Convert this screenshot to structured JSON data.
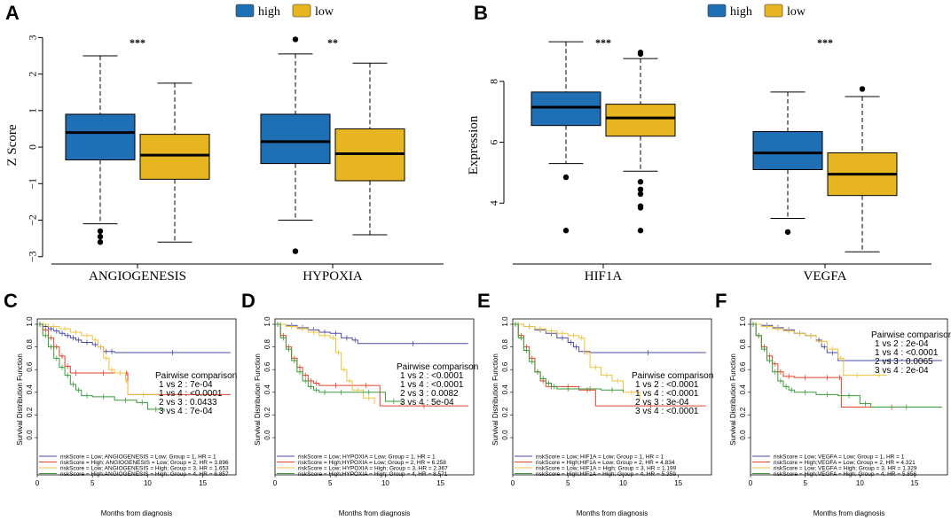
{
  "colors": {
    "high": "#1f6fb5",
    "low": "#e6b520",
    "km_group1": "#4a4aa8",
    "km_group2": "#e0422a",
    "km_group3": "#f0c23c",
    "km_group4": "#3a9a3a"
  },
  "chart_data": [
    {
      "panel": "A",
      "type": "box",
      "ylabel": "Z Score",
      "ylim": [
        -3.2,
        3.3
      ],
      "yticks": [
        -3,
        -2,
        -1,
        0,
        1,
        2,
        3
      ],
      "legend": [
        "high",
        "low"
      ],
      "groups": [
        {
          "category": "ANGIOGENESIS",
          "significance": "***",
          "boxes": [
            {
              "series": "high",
              "whisker_low": -2.1,
              "q1": -0.35,
              "median": 0.4,
              "q3": 0.9,
              "whisker_high": 2.5,
              "outliers": [
                -2.3,
                -2.45,
                -2.6
              ]
            },
            {
              "series": "low",
              "whisker_low": -2.6,
              "q1": -0.88,
              "median": -0.22,
              "q3": 0.35,
              "whisker_high": 1.75,
              "outliers": []
            }
          ]
        },
        {
          "category": "HYPOXIA",
          "significance": "**",
          "boxes": [
            {
              "series": "high",
              "whisker_low": -2.0,
              "q1": -0.45,
              "median": 0.15,
              "q3": 0.9,
              "whisker_high": 2.55,
              "outliers": [
                2.95,
                -2.85
              ]
            },
            {
              "series": "low",
              "whisker_low": -2.4,
              "q1": -0.92,
              "median": -0.18,
              "q3": 0.5,
              "whisker_high": 2.3,
              "outliers": []
            }
          ]
        }
      ]
    },
    {
      "panel": "B",
      "type": "box",
      "ylabel": "Expression",
      "ylim": [
        2.0,
        9.8
      ],
      "yticks": [
        4,
        6,
        8
      ],
      "legend": [
        "high",
        "low"
      ],
      "groups": [
        {
          "category": "HIF1A",
          "significance": "***",
          "boxes": [
            {
              "series": "high",
              "whisker_low": 5.3,
              "q1": 6.55,
              "median": 7.15,
              "q3": 7.65,
              "whisker_high": 9.3,
              "outliers": [
                4.85,
                3.1
              ]
            },
            {
              "series": "low",
              "whisker_low": 5.05,
              "q1": 6.2,
              "median": 6.8,
              "q3": 7.25,
              "whisker_high": 8.75,
              "outliers": [
                8.9,
                8.95,
                4.7,
                4.45,
                4.3,
                3.9,
                3.85,
                3.1
              ]
            }
          ]
        },
        {
          "category": "VEGFA",
          "significance": "***",
          "boxes": [
            {
              "series": "high",
              "whisker_low": 3.5,
              "q1": 5.1,
              "median": 5.65,
              "q3": 6.35,
              "whisker_high": 7.65,
              "outliers": [
                3.05
              ]
            },
            {
              "series": "low",
              "whisker_low": 2.4,
              "q1": 4.25,
              "median": 4.95,
              "q3": 5.65,
              "whisker_high": 7.5,
              "outliers": [
                7.75
              ]
            }
          ]
        }
      ]
    },
    {
      "panel": "C",
      "type": "line",
      "xlabel": "Months from diagnosis",
      "ylabel": "Survival Distribution Function",
      "xlim": [
        0,
        18
      ],
      "ylim": [
        0,
        1
      ],
      "xticks": [
        0,
        5,
        10,
        15
      ],
      "yticks": [
        0.0,
        0.2,
        0.4,
        0.6,
        0.8,
        1.0
      ],
      "pairwise_title": "Pairwise comparison",
      "pairwise": [
        "1 vs 2 : 7e-04",
        "1 vs 4 : <0.0001",
        "2 vs 3 : 0.0433",
        "3 vs 4 : 7e-04"
      ],
      "legend": [
        "riskScore = Low; ANGIOGENESIS = Low;  Group = 1, HR = 1",
        "riskScore = High; ANGIOGENESIS = Low;  Group = 2, HR = 3.896",
        "riskScore = Low; ANGIOGENESIS = High;  Group = 3, HR = 1.653",
        "riskScore = High;ANGIOGENESIS = High; Group = 4, HR = 6.857"
      ],
      "series": [
        {
          "name": "Group 1",
          "x": [
            0,
            0.5,
            1,
            1.5,
            2,
            2.5,
            3,
            3.5,
            4,
            5,
            5.5,
            6,
            6.5,
            7,
            17.5
          ],
          "y": [
            1,
            0.98,
            0.96,
            0.94,
            0.92,
            0.9,
            0.88,
            0.86,
            0.84,
            0.82,
            0.8,
            0.76,
            0.76,
            0.75,
            0.75
          ]
        },
        {
          "name": "Group 2",
          "x": [
            0,
            0.5,
            1,
            1.5,
            2,
            2.5,
            3,
            4,
            8,
            8.2,
            17.5
          ],
          "y": [
            1,
            0.95,
            0.88,
            0.8,
            0.72,
            0.63,
            0.57,
            0.57,
            0.57,
            0.38,
            0.38
          ]
        },
        {
          "name": "Group 3",
          "x": [
            0,
            1,
            2,
            3,
            4,
            5,
            5.5,
            6,
            6.5,
            7,
            8,
            8.2,
            11
          ],
          "y": [
            1,
            0.98,
            0.96,
            0.93,
            0.9,
            0.86,
            0.8,
            0.7,
            0.6,
            0.57,
            0.5,
            0.38,
            0.38
          ]
        },
        {
          "name": "Group 4",
          "x": [
            0,
            0.5,
            1,
            1.5,
            2,
            2.5,
            3,
            3.5,
            4,
            5,
            7,
            9,
            10,
            11.5
          ],
          "y": [
            1,
            0.9,
            0.8,
            0.7,
            0.62,
            0.55,
            0.47,
            0.42,
            0.37,
            0.36,
            0.33,
            0.31,
            0.25,
            0.23
          ]
        }
      ]
    },
    {
      "panel": "D",
      "type": "line",
      "xlabel": "Months from diagnosis",
      "ylabel": "Survival Distribution Function",
      "xlim": [
        0,
        18
      ],
      "ylim": [
        0,
        1
      ],
      "xticks": [
        0,
        5,
        10,
        15
      ],
      "yticks": [
        0.0,
        0.2,
        0.4,
        0.6,
        0.8,
        1.0
      ],
      "pairwise_title": "Pairwise comparison",
      "pairwise": [
        "1 vs 2 : <0.0001",
        "1 vs 4 : <0.0001",
        "2 vs 3 : 0.0082",
        "3 vs 4 : 5e-04"
      ],
      "legend": [
        "riskScore = Low; HYPOXIA = Low;  Group = 1, HR = 1",
        "riskScore = High;HYPOXIA = Low;  Group = 2, HR = 6.258",
        "riskScore = Low; HYPOXIA = High;  Group = 3, HR = 2.367",
        "riskScore = High;HYPOXIA = High; Group = 4, HR = 8.571"
      ],
      "series": [
        {
          "name": "Group 1",
          "x": [
            0,
            1,
            2,
            3,
            4,
            5,
            6,
            7,
            7.5,
            17.5
          ],
          "y": [
            1,
            0.99,
            0.97,
            0.95,
            0.93,
            0.92,
            0.88,
            0.86,
            0.83,
            0.83
          ]
        },
        {
          "name": "Group 2",
          "x": [
            0,
            0.5,
            1,
            1.5,
            2,
            2.5,
            3,
            3.5,
            4,
            7,
            9.5,
            17.5
          ],
          "y": [
            1,
            0.9,
            0.8,
            0.7,
            0.62,
            0.55,
            0.5,
            0.48,
            0.46,
            0.46,
            0.28,
            0.28
          ]
        },
        {
          "name": "Group 3",
          "x": [
            0,
            1,
            2,
            3,
            4,
            5,
            5.5,
            6,
            6.5,
            7,
            8,
            9
          ],
          "y": [
            1,
            0.98,
            0.96,
            0.93,
            0.9,
            0.88,
            0.75,
            0.6,
            0.5,
            0.42,
            0.35,
            0.3
          ]
        },
        {
          "name": "Group 4",
          "x": [
            0,
            0.5,
            1,
            1.5,
            2,
            2.5,
            3,
            3.5,
            4,
            5,
            7,
            10,
            11.5
          ],
          "y": [
            1,
            0.88,
            0.78,
            0.68,
            0.58,
            0.5,
            0.45,
            0.42,
            0.4,
            0.4,
            0.4,
            0.32,
            0.3
          ]
        }
      ]
    },
    {
      "panel": "E",
      "type": "line",
      "xlabel": "Months from diagnosis",
      "ylabel": "Survival Distribution Function",
      "xlim": [
        0,
        18
      ],
      "ylim": [
        0,
        1
      ],
      "xticks": [
        0,
        5,
        10,
        15
      ],
      "yticks": [
        0.0,
        0.2,
        0.4,
        0.6,
        0.8,
        1.0
      ],
      "pairwise_title": "Pairwise comparison",
      "pairwise": [
        "1 vs 2 : <0.0001",
        "1 vs 4 : <0.0001",
        "2 vs 3 : 3e-04",
        "3 vs 4 : <0.0001"
      ],
      "legend": [
        "riskScore = Low; HIF1A = Low;  Group = 1, HR = 1",
        "riskScore = High;HIF1A = Low;  Group = 2, HR = 4.834",
        "riskScore = Low; HIF1A = High;  Group = 3, HR = 1.199",
        "riskScore = High;HIF1A = High; Group = 4, HR = 5.359"
      ],
      "series": [
        {
          "name": "Group 1",
          "x": [
            0,
            1,
            2,
            3,
            4,
            5,
            5.5,
            6,
            7,
            17.5
          ],
          "y": [
            1,
            0.98,
            0.95,
            0.92,
            0.88,
            0.84,
            0.8,
            0.76,
            0.75,
            0.75
          ]
        },
        {
          "name": "Group 2",
          "x": [
            0,
            0.5,
            1,
            1.5,
            2,
            2.5,
            3,
            4,
            6,
            7.5,
            17.5
          ],
          "y": [
            1,
            0.9,
            0.8,
            0.7,
            0.58,
            0.5,
            0.45,
            0.45,
            0.42,
            0.28,
            0.28
          ]
        },
        {
          "name": "Group 3",
          "x": [
            0,
            1,
            2,
            3,
            4,
            5,
            6,
            6.5,
            7,
            8,
            9,
            10,
            11.5
          ],
          "y": [
            1,
            0.98,
            0.96,
            0.94,
            0.92,
            0.9,
            0.88,
            0.75,
            0.62,
            0.55,
            0.5,
            0.4,
            0.33
          ]
        },
        {
          "name": "Group 4",
          "x": [
            0,
            0.5,
            1,
            1.5,
            2,
            2.5,
            3,
            3.5,
            4,
            6,
            8,
            10
          ],
          "y": [
            1,
            0.88,
            0.77,
            0.67,
            0.58,
            0.52,
            0.48,
            0.45,
            0.43,
            0.43,
            0.42,
            0.4
          ]
        }
      ]
    },
    {
      "panel": "F",
      "type": "line",
      "xlabel": "Months from diagnosis",
      "ylabel": "Survival Distribution Function",
      "xlim": [
        0,
        18
      ],
      "ylim": [
        0,
        1
      ],
      "xticks": [
        0,
        5,
        10,
        15
      ],
      "yticks": [
        0.0,
        0.2,
        0.4,
        0.6,
        0.8,
        1.0
      ],
      "pairwise_title": "Pairwise comparison",
      "pairwise": [
        "1 vs 2 : 2e-04",
        "1 vs 4 : <0.0001",
        "2 vs 3 : 0.0065",
        "3 vs 4 : 2e-04"
      ],
      "legend": [
        "riskScore = Low; VEGFA = Low;  Group = 1, HR = 1",
        "riskScore = High;VEGFA = Low;  Group = 2, HR = 4.321",
        "riskScore = Low; VEGFA = High;  Group = 3, HR = 1.329",
        "riskScore = High;VEGFA = High; Group = 4, HR = 5.856"
      ],
      "series": [
        {
          "name": "Group 1",
          "x": [
            0,
            1,
            2,
            3,
            4,
            5,
            6,
            6.5,
            7,
            8,
            17.5
          ],
          "y": [
            1,
            0.99,
            0.97,
            0.95,
            0.92,
            0.9,
            0.86,
            0.8,
            0.75,
            0.68,
            0.68
          ]
        },
        {
          "name": "Group 2",
          "x": [
            0,
            0.5,
            1,
            1.5,
            2,
            2.5,
            3,
            4,
            6,
            8,
            8.3,
            17.5
          ],
          "y": [
            1,
            0.9,
            0.8,
            0.72,
            0.65,
            0.58,
            0.54,
            0.53,
            0.53,
            0.53,
            0.27,
            0.27
          ]
        },
        {
          "name": "Group 3",
          "x": [
            0,
            1,
            2,
            3,
            4,
            5,
            6,
            7,
            8,
            8.5,
            11,
            12.5
          ],
          "y": [
            1,
            0.98,
            0.96,
            0.94,
            0.92,
            0.9,
            0.85,
            0.78,
            0.7,
            0.55,
            0.55,
            0.55
          ]
        },
        {
          "name": "Group 4",
          "x": [
            0,
            0.5,
            1,
            1.5,
            2,
            2.5,
            3,
            3.5,
            4,
            6,
            8,
            10,
            11,
            17.5
          ],
          "y": [
            1,
            0.9,
            0.78,
            0.68,
            0.58,
            0.5,
            0.45,
            0.42,
            0.4,
            0.38,
            0.37,
            0.3,
            0.27,
            0.27
          ]
        }
      ]
    }
  ]
}
